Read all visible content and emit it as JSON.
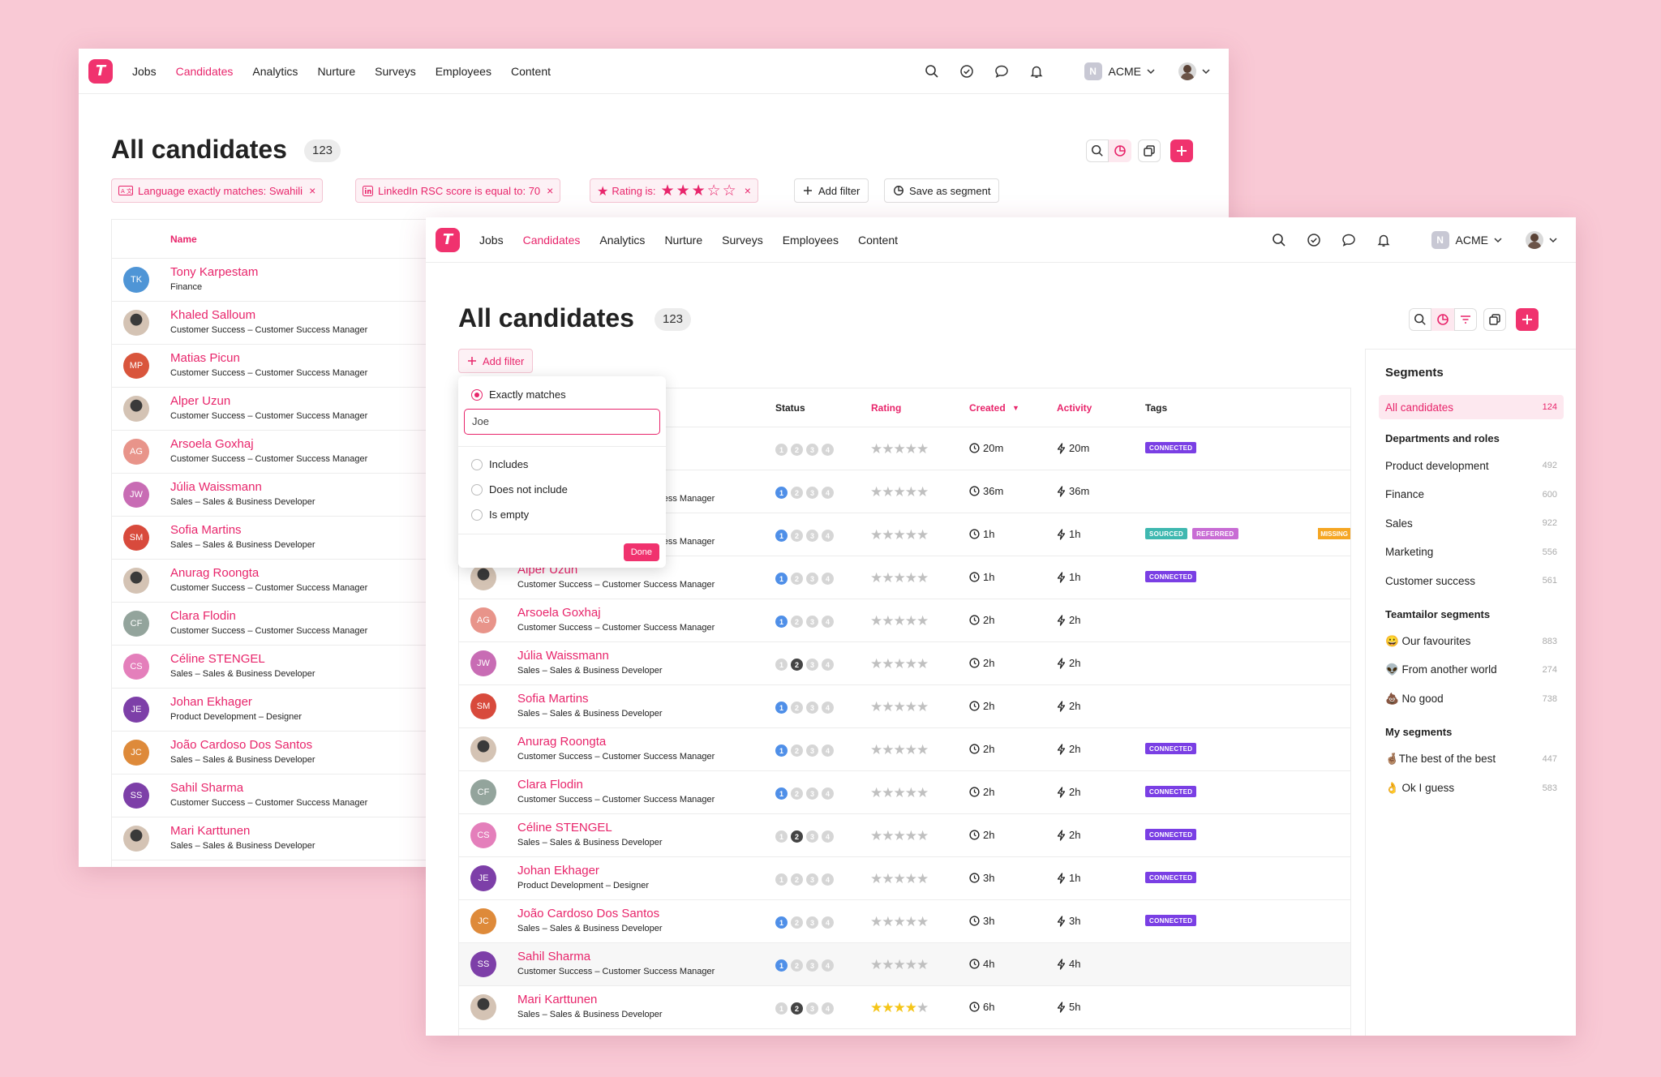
{
  "nav": {
    "items": [
      "Jobs",
      "Candidates",
      "Analytics",
      "Nurture",
      "Surveys",
      "Employees",
      "Content"
    ],
    "active": "Candidates",
    "org": "ACME",
    "org_badge": "N",
    "logo": "T"
  },
  "page": {
    "title": "All candidates",
    "count": "123"
  },
  "filters": {
    "chips": [
      "Language exactly matches: Swahili",
      "LinkedIn RSC score is equal to: 70",
      "Rating is:"
    ],
    "add_filter": "Add filter",
    "save_segment": "Save as segment",
    "close": "×"
  },
  "table": {
    "headers": {
      "name": "Name",
      "status": "Status",
      "rating": "Rating",
      "created": "Created",
      "activity": "Activity",
      "tags": "Tags"
    }
  },
  "candidates_back": [
    {
      "initials": "TK",
      "name": "Tony Karpestam",
      "sub": "Finance",
      "color": "#4f95d6",
      "photo": false
    },
    {
      "initials": "",
      "name": "Khaled Salloum",
      "sub": "Customer Success – Customer Success Manager",
      "color": "#999",
      "photo": true
    },
    {
      "initials": "MP",
      "name": "Matias Picun",
      "sub": "Customer Success – Customer Success Manager",
      "color": "#d9553c",
      "photo": false
    },
    {
      "initials": "",
      "name": "Alper Uzun",
      "sub": "Customer Success – Customer Success Manager",
      "color": "#333",
      "photo": true
    },
    {
      "initials": "AG",
      "name": "Arsoela Goxhaj",
      "sub": "Customer Success – Customer Success Manager",
      "color": "#e8948a",
      "photo": false
    },
    {
      "initials": "JW",
      "name": "Júlia Waissmann",
      "sub": "Sales – Sales & Business Developer",
      "color": "#c86cb4",
      "photo": false
    },
    {
      "initials": "SM",
      "name": "Sofia Martins",
      "sub": "Sales – Sales & Business Developer",
      "color": "#d84a3c",
      "photo": false
    },
    {
      "initials": "",
      "name": "Anurag Roongta",
      "sub": "Customer Success – Customer Success Manager",
      "color": "#555",
      "photo": true
    },
    {
      "initials": "CF",
      "name": "Clara Flodin",
      "sub": "Customer Success – Customer Success Manager",
      "color": "#93a49c",
      "photo": false
    },
    {
      "initials": "CS",
      "name": "Céline STENGEL",
      "sub": "Sales – Sales & Business Developer",
      "color": "#e47fbb",
      "photo": false
    },
    {
      "initials": "JE",
      "name": "Johan Ekhager",
      "sub": "Product Development – Designer",
      "color": "#7d3fa8",
      "photo": false
    },
    {
      "initials": "JC",
      "name": "João Cardoso Dos Santos",
      "sub": "Sales – Sales & Business Developer",
      "color": "#de8a3a",
      "photo": false
    },
    {
      "initials": "SS",
      "name": "Sahil Sharma",
      "sub": "Customer Success – Customer Success Manager",
      "color": "#7d3fa8",
      "photo": false
    },
    {
      "initials": "",
      "name": "Mari Karttunen",
      "sub": "Sales – Sales & Business Developer",
      "color": "#666",
      "photo": true
    }
  ],
  "candidates_front": [
    {
      "initials": "",
      "name": "",
      "sub": "",
      "status": [
        0,
        0,
        0,
        0
      ],
      "rating": 0,
      "created": "20m",
      "activity": "20m",
      "tags": [
        "CONNECTED"
      ],
      "photo": false,
      "color": "#fff"
    },
    {
      "initials": "",
      "name": "",
      "sub": "Customer Success – Customer Success Manager",
      "status": [
        1,
        0,
        0,
        0
      ],
      "rating": 0,
      "created": "36m",
      "activity": "36m",
      "tags": [],
      "photo": false,
      "color": "#fff"
    },
    {
      "initials": "",
      "name": "",
      "sub": "Customer Success – Customer Success Manager",
      "status": [
        1,
        0,
        0,
        0
      ],
      "rating": 0,
      "created": "1h",
      "activity": "1h",
      "tags": [
        "SOURCED",
        "REFERRED"
      ],
      "missing": "MISSING",
      "photo": false,
      "color": "#fff"
    },
    {
      "initials": "",
      "name": "Alper Uzun",
      "sub": "Customer Success – Customer Success Manager",
      "status": [
        1,
        0,
        0,
        0
      ],
      "rating": 0,
      "created": "1h",
      "activity": "1h",
      "tags": [
        "CONNECTED"
      ],
      "photo": true,
      "color": "#333"
    },
    {
      "initials": "AG",
      "name": "Arsoela Goxhaj",
      "sub": "Customer Success – Customer Success Manager",
      "status": [
        1,
        0,
        0,
        0
      ],
      "rating": 0,
      "created": "2h",
      "activity": "2h",
      "tags": [],
      "photo": false,
      "color": "#e8948a"
    },
    {
      "initials": "JW",
      "name": "Júlia Waissmann",
      "sub": "Sales – Sales & Business Developer",
      "status": [
        0,
        2,
        0,
        0
      ],
      "rating": 0,
      "created": "2h",
      "activity": "2h",
      "tags": [],
      "photo": false,
      "color": "#c86cb4"
    },
    {
      "initials": "SM",
      "name": "Sofia Martins",
      "sub": "Sales – Sales & Business Developer",
      "status": [
        1,
        0,
        0,
        0
      ],
      "rating": 0,
      "created": "2h",
      "activity": "2h",
      "tags": [],
      "photo": false,
      "color": "#d84a3c"
    },
    {
      "initials": "",
      "name": "Anurag Roongta",
      "sub": "Customer Success – Customer Success Manager",
      "status": [
        1,
        0,
        0,
        0
      ],
      "rating": 0,
      "created": "2h",
      "activity": "2h",
      "tags": [
        "CONNECTED"
      ],
      "photo": true,
      "color": "#555"
    },
    {
      "initials": "CF",
      "name": "Clara Flodin",
      "sub": "Customer Success – Customer Success Manager",
      "status": [
        1,
        0,
        0,
        0
      ],
      "rating": 0,
      "created": "2h",
      "activity": "2h",
      "tags": [
        "CONNECTED"
      ],
      "photo": false,
      "color": "#93a49c"
    },
    {
      "initials": "CS",
      "name": "Céline STENGEL",
      "sub": "Sales – Sales & Business Developer",
      "status": [
        0,
        2,
        0,
        0
      ],
      "rating": 0,
      "created": "2h",
      "activity": "2h",
      "tags": [
        "CONNECTED"
      ],
      "photo": false,
      "color": "#e47fbb"
    },
    {
      "initials": "JE",
      "name": "Johan Ekhager",
      "sub": "Product Development – Designer",
      "status": [
        0,
        0,
        0,
        0
      ],
      "rating": 0,
      "created": "3h",
      "activity": "1h",
      "tags": [
        "CONNECTED"
      ],
      "photo": false,
      "color": "#7d3fa8"
    },
    {
      "initials": "JC",
      "name": "João Cardoso Dos Santos",
      "sub": "Sales – Sales & Business Developer",
      "status": [
        1,
        0,
        0,
        0
      ],
      "rating": 0,
      "created": "3h",
      "activity": "3h",
      "tags": [
        "CONNECTED"
      ],
      "photo": false,
      "color": "#de8a3a"
    },
    {
      "initials": "SS",
      "name": "Sahil Sharma",
      "sub": "Customer Success – Customer Success Manager",
      "status": [
        1,
        0,
        0,
        0
      ],
      "rating": 0,
      "created": "4h",
      "activity": "4h",
      "tags": [],
      "photo": false,
      "color": "#7d3fa8"
    },
    {
      "initials": "",
      "name": "Mari Karttunen",
      "sub": "Sales – Sales & Business Developer",
      "status": [
        0,
        2,
        0,
        0
      ],
      "rating": 4,
      "created": "6h",
      "activity": "5h",
      "tags": [],
      "photo": true,
      "color": "#666"
    }
  ],
  "tag_colors": {
    "CONNECTED": "#7a3fe4",
    "SOURCED": "#3fb8b0",
    "REFERRED": "#c86cd4"
  },
  "popover": {
    "options": [
      "Exactly matches",
      "Includes",
      "Does not include",
      "Is empty"
    ],
    "selected": "Exactly matches",
    "value": "Joe",
    "done": "Done"
  },
  "segments": {
    "title": "Segments",
    "all": {
      "label": "All candidates",
      "count": "124"
    },
    "groups": [
      {
        "title": "Departments and roles",
        "items": [
          {
            "label": "Product development",
            "count": "492"
          },
          {
            "label": "Finance",
            "count": "600"
          },
          {
            "label": "Sales",
            "count": "922"
          },
          {
            "label": "Marketing",
            "count": "556"
          },
          {
            "label": "Customer success",
            "count": "561"
          }
        ]
      },
      {
        "title": "Teamtailor segments",
        "items": [
          {
            "label": "😀 Our favourites",
            "count": "883"
          },
          {
            "label": "👽 From another world",
            "count": "274"
          },
          {
            "label": "💩 No good",
            "count": "738"
          }
        ]
      },
      {
        "title": "My segments",
        "items": [
          {
            "label": "🤞🏽The best of the best",
            "count": "447"
          },
          {
            "label": "👌 Ok I guess",
            "count": "583"
          }
        ]
      }
    ]
  },
  "colors": {
    "accent": "#e8256b",
    "brand": "#f0326e",
    "star_on": "#f5c518",
    "star_off": "#c0c0c0"
  },
  "icons": [
    "search-icon",
    "check-circle-icon",
    "chat-icon",
    "bell-icon",
    "chevron-down-icon",
    "segment-icon",
    "filter-icon",
    "copy-icon",
    "plus-icon",
    "clock-icon",
    "bolt-icon",
    "star-icon",
    "close-icon",
    "language-icon",
    "linkedin-icon"
  ]
}
